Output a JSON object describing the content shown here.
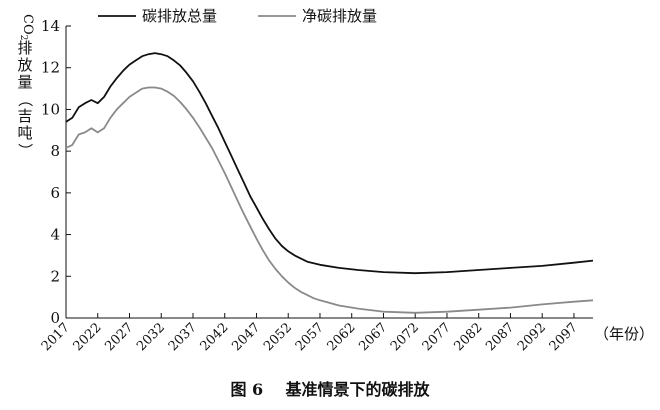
{
  "caption": {
    "number": "图 6",
    "text": "基准情景下的碳排放"
  },
  "chart_data": {
    "type": "line",
    "ylabel_prefix": "CO",
    "ylabel_sub": "2",
    "ylabel_rest": "排放量（吉吨）",
    "xlabel": "（年份）",
    "ylim": [
      0,
      14
    ],
    "yticks": [
      0,
      2,
      4,
      6,
      8,
      10,
      12,
      14
    ],
    "xlim": [
      2017,
      2100
    ],
    "xticks": [
      2017,
      2022,
      2027,
      2032,
      2037,
      2042,
      2047,
      2052,
      2057,
      2062,
      2067,
      2072,
      2077,
      2082,
      2087,
      2092,
      2097
    ],
    "legend_position": "top-left",
    "series": [
      {
        "name": "碳排放总量",
        "color": "#111111",
        "points": [
          [
            2017,
            9.4
          ],
          [
            2018,
            9.6
          ],
          [
            2019,
            10.1
          ],
          [
            2020,
            10.3
          ],
          [
            2021,
            10.45
          ],
          [
            2022,
            10.3
          ],
          [
            2023,
            10.6
          ],
          [
            2024,
            11.1
          ],
          [
            2025,
            11.5
          ],
          [
            2026,
            11.85
          ],
          [
            2027,
            12.15
          ],
          [
            2028,
            12.35
          ],
          [
            2029,
            12.55
          ],
          [
            2030,
            12.65
          ],
          [
            2031,
            12.7
          ],
          [
            2032,
            12.65
          ],
          [
            2033,
            12.55
          ],
          [
            2034,
            12.35
          ],
          [
            2035,
            12.1
          ],
          [
            2036,
            11.75
          ],
          [
            2037,
            11.35
          ],
          [
            2038,
            10.85
          ],
          [
            2039,
            10.3
          ],
          [
            2040,
            9.7
          ],
          [
            2041,
            9.1
          ],
          [
            2042,
            8.45
          ],
          [
            2043,
            7.8
          ],
          [
            2044,
            7.15
          ],
          [
            2045,
            6.5
          ],
          [
            2046,
            5.85
          ],
          [
            2047,
            5.3
          ],
          [
            2048,
            4.75
          ],
          [
            2049,
            4.25
          ],
          [
            2050,
            3.8
          ],
          [
            2051,
            3.45
          ],
          [
            2052,
            3.2
          ],
          [
            2053,
            3.0
          ],
          [
            2054,
            2.85
          ],
          [
            2055,
            2.7
          ],
          [
            2057,
            2.55
          ],
          [
            2060,
            2.4
          ],
          [
            2063,
            2.3
          ],
          [
            2067,
            2.2
          ],
          [
            2072,
            2.15
          ],
          [
            2077,
            2.2
          ],
          [
            2082,
            2.3
          ],
          [
            2087,
            2.4
          ],
          [
            2092,
            2.5
          ],
          [
            2097,
            2.65
          ],
          [
            2100,
            2.75
          ]
        ]
      },
      {
        "name": "净碳排放量",
        "color": "#8a8a8a",
        "points": [
          [
            2017,
            8.15
          ],
          [
            2018,
            8.3
          ],
          [
            2019,
            8.8
          ],
          [
            2020,
            8.9
          ],
          [
            2021,
            9.1
          ],
          [
            2022,
            8.9
          ],
          [
            2023,
            9.1
          ],
          [
            2024,
            9.6
          ],
          [
            2025,
            10.0
          ],
          [
            2026,
            10.3
          ],
          [
            2027,
            10.6
          ],
          [
            2028,
            10.8
          ],
          [
            2029,
            11.0
          ],
          [
            2030,
            11.05
          ],
          [
            2031,
            11.05
          ],
          [
            2032,
            11.0
          ],
          [
            2033,
            10.85
          ],
          [
            2034,
            10.65
          ],
          [
            2035,
            10.35
          ],
          [
            2036,
            10.0
          ],
          [
            2037,
            9.6
          ],
          [
            2038,
            9.15
          ],
          [
            2039,
            8.65
          ],
          [
            2040,
            8.15
          ],
          [
            2041,
            7.55
          ],
          [
            2042,
            6.95
          ],
          [
            2043,
            6.3
          ],
          [
            2044,
            5.65
          ],
          [
            2045,
            5.0
          ],
          [
            2046,
            4.4
          ],
          [
            2047,
            3.8
          ],
          [
            2048,
            3.25
          ],
          [
            2049,
            2.75
          ],
          [
            2050,
            2.35
          ],
          [
            2051,
            2.0
          ],
          [
            2052,
            1.7
          ],
          [
            2053,
            1.45
          ],
          [
            2054,
            1.25
          ],
          [
            2055,
            1.1
          ],
          [
            2056,
            0.95
          ],
          [
            2057,
            0.85
          ],
          [
            2060,
            0.6
          ],
          [
            2063,
            0.45
          ],
          [
            2067,
            0.3
          ],
          [
            2072,
            0.25
          ],
          [
            2077,
            0.3
          ],
          [
            2082,
            0.4
          ],
          [
            2087,
            0.5
          ],
          [
            2092,
            0.65
          ],
          [
            2097,
            0.78
          ],
          [
            2100,
            0.85
          ]
        ]
      }
    ]
  }
}
